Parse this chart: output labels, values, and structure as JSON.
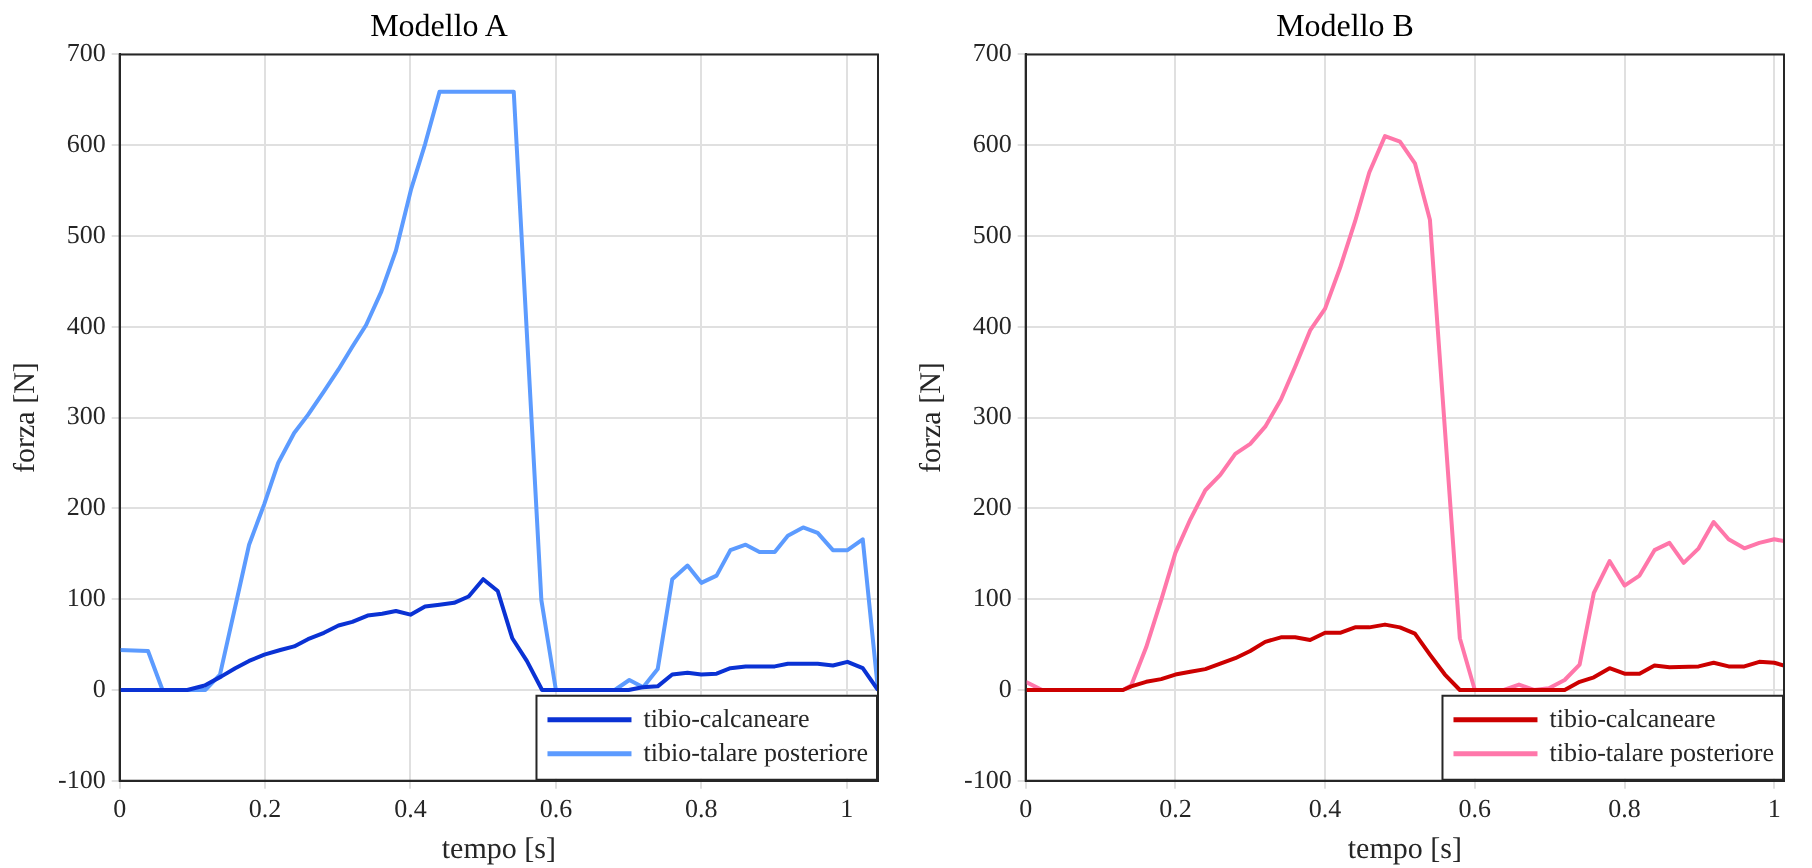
{
  "chart_data": [
    {
      "type": "line",
      "title": "Modello A",
      "xlabel": "tempo [s]",
      "ylabel": "forza [N]",
      "xlim": [
        0,
        1.043
      ],
      "ylim": [
        -100,
        700
      ],
      "xticks": [
        0,
        0.2,
        0.4,
        0.6,
        0.8,
        1
      ],
      "yticks": [
        -100,
        0,
        100,
        200,
        300,
        400,
        500,
        600,
        700
      ],
      "grid": true,
      "legend": "bottom right",
      "marker": "none",
      "line_style": "solid",
      "series": [
        {
          "name": "tibio-calcaneare",
          "color": "#0a32d4",
          "x": [
            0,
            0.093,
            0.117,
            0.14,
            0.159,
            0.178,
            0.199,
            0.221,
            0.24,
            0.259,
            0.281,
            0.301,
            0.32,
            0.341,
            0.361,
            0.38,
            0.4,
            0.42,
            0.44,
            0.46,
            0.48,
            0.5,
            0.52,
            0.54,
            0.56,
            0.581,
            0.6,
            0.7,
            0.719,
            0.74,
            0.76,
            0.781,
            0.8,
            0.821,
            0.84,
            0.861,
            0.901,
            0.919,
            0.96,
            0.981,
            1.001,
            1.022,
            1.043
          ],
          "values": [
            0,
            0,
            5,
            15,
            24,
            32,
            39,
            44,
            48,
            56,
            63,
            71,
            75,
            82,
            84,
            87,
            83,
            92,
            94,
            96,
            103,
            122,
            109,
            57,
            32,
            0,
            0,
            0,
            3,
            4,
            17,
            19,
            17,
            18,
            24,
            26,
            26,
            29,
            29,
            27,
            31,
            24,
            0
          ]
        },
        {
          "name": "tibio-talare posteriore",
          "color": "#5c9bff",
          "x": [
            0,
            0.039,
            0.059,
            0.118,
            0.138,
            0.159,
            0.178,
            0.199,
            0.218,
            0.24,
            0.259,
            0.281,
            0.301,
            0.32,
            0.339,
            0.36,
            0.38,
            0.401,
            0.42,
            0.44,
            0.542,
            0.58,
            0.6,
            0.681,
            0.701,
            0.72,
            0.74,
            0.76,
            0.781,
            0.8,
            0.821,
            0.84,
            0.861,
            0.88,
            0.901,
            0.919,
            0.94,
            0.96,
            0.981,
            1.001,
            1.022,
            1.043
          ],
          "values": [
            44,
            43,
            0,
            0,
            17,
            92,
            160,
            205,
            250,
            283,
            303,
            329,
            353,
            378,
            402,
            439,
            484,
            552,
            601,
            659,
            659,
            99,
            0,
            0,
            11,
            3,
            23,
            122,
            137,
            118,
            126,
            154,
            160,
            152,
            152,
            170,
            179,
            173,
            154,
            154,
            166,
            0
          ]
        }
      ]
    },
    {
      "type": "line",
      "title": "Modello B",
      "xlabel": "tempo [s]",
      "ylabel": "forza [N]",
      "xlim": [
        0,
        1.013
      ],
      "ylim": [
        -100,
        700
      ],
      "xticks": [
        0,
        0.2,
        0.4,
        0.6,
        0.8,
        1
      ],
      "yticks": [
        -100,
        0,
        100,
        200,
        300,
        400,
        500,
        600,
        700
      ],
      "grid": true,
      "legend": "bottom right",
      "marker": "none",
      "line_style": "solid",
      "series": [
        {
          "name": "tibio-calcaneare",
          "color": "#cc0000",
          "x": [
            0,
            0.13,
            0.141,
            0.161,
            0.181,
            0.2,
            0.22,
            0.24,
            0.26,
            0.28,
            0.3,
            0.32,
            0.341,
            0.36,
            0.38,
            0.4,
            0.42,
            0.44,
            0.459,
            0.48,
            0.5,
            0.52,
            0.54,
            0.56,
            0.58,
            0.6,
            0.72,
            0.74,
            0.759,
            0.78,
            0.8,
            0.82,
            0.84,
            0.86,
            0.899,
            0.919,
            0.939,
            0.96,
            0.98,
            1,
            1.013
          ],
          "values": [
            0,
            0,
            4,
            9,
            12,
            17,
            20,
            23,
            29,
            35,
            43,
            53,
            58,
            58,
            55,
            63,
            63,
            69,
            69,
            72,
            69,
            62,
            39,
            17,
            0,
            0,
            0,
            9,
            14,
            24,
            18,
            18,
            27,
            25,
            26,
            30,
            26,
            26,
            31,
            30,
            27
          ]
        },
        {
          "name": "tibio-talare posteriore",
          "color": "#ff77aa",
          "x": [
            0,
            0.022,
            0.13,
            0.141,
            0.161,
            0.181,
            0.2,
            0.22,
            0.24,
            0.26,
            0.28,
            0.3,
            0.32,
            0.341,
            0.36,
            0.38,
            0.4,
            0.42,
            0.44,
            0.459,
            0.48,
            0.5,
            0.52,
            0.54,
            0.58,
            0.6,
            0.639,
            0.659,
            0.679,
            0.699,
            0.72,
            0.74,
            0.759,
            0.78,
            0.8,
            0.82,
            0.84,
            0.86,
            0.879,
            0.899,
            0.919,
            0.939,
            0.96,
            0.98,
            1,
            1.013
          ],
          "values": [
            9,
            0,
            0,
            5,
            47,
            99,
            151,
            188,
            220,
            237,
            260,
            271,
            290,
            320,
            356,
            396,
            420,
            465,
            516,
            570,
            610,
            604,
            580,
            518,
            57,
            0,
            0,
            6,
            0,
            2,
            11,
            28,
            107,
            142,
            115,
            126,
            154,
            162,
            140,
            156,
            185,
            166,
            156,
            162,
            166,
            164
          ]
        }
      ]
    }
  ]
}
